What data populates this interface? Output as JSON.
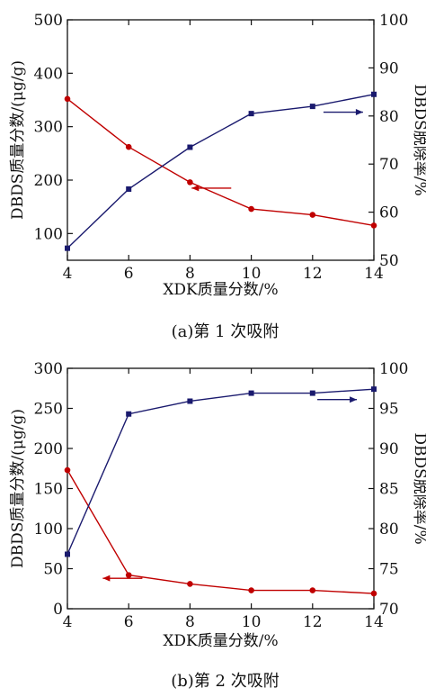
{
  "chart_data": [
    {
      "type": "line",
      "caption": "(a)第 1 次吸附",
      "xlabel": "XDK质量分数/%",
      "ylabel_left": "DBDS质量分数/(μg/g)",
      "ylabel_right": "DBDS脱除率/%",
      "x": [
        4,
        6,
        8,
        10,
        12,
        14
      ],
      "xlim": [
        4,
        14
      ],
      "ylim_left": [
        50,
        500
      ],
      "ylim_right": [
        50,
        100
      ],
      "xticks": [
        "4",
        "6",
        "8",
        "10",
        "12",
        "14"
      ],
      "yticks_left": [
        "100",
        "200",
        "300",
        "400",
        "500"
      ],
      "yticks_right": [
        "50",
        "60",
        "70",
        "80",
        "90",
        "100"
      ],
      "series": [
        {
          "axis": "left",
          "color": "#c00000",
          "marker": "circle",
          "values": [
            352,
            262,
            196,
            146,
            135,
            115
          ]
        },
        {
          "axis": "right",
          "color": "#1a1a6e",
          "marker": "square",
          "values": [
            52.5,
            64.8,
            73.5,
            80.5,
            82.0,
            84.5
          ]
        }
      ],
      "arrows": [
        {
          "series": 0,
          "direction": "left",
          "x": 8.7,
          "y_right": 65
        },
        {
          "series": 1,
          "direction": "right",
          "x": 13.0,
          "y_right": 80.8
        }
      ]
    },
    {
      "type": "line",
      "caption": "(b)第 2 次吸附",
      "xlabel": "XDK质量分数/%",
      "ylabel_left": "DBDS质量分数/(μg/g)",
      "ylabel_right": "DBDS脱除率/%",
      "x": [
        4,
        6,
        8,
        10,
        12,
        14
      ],
      "xlim": [
        4,
        14
      ],
      "ylim_left": [
        0,
        300
      ],
      "ylim_right": [
        70,
        100
      ],
      "xticks": [
        "4",
        "6",
        "8",
        "10",
        "12",
        "14"
      ],
      "yticks_left": [
        "0",
        "50",
        "100",
        "150",
        "200",
        "250",
        "300"
      ],
      "yticks_right": [
        "70",
        "75",
        "80",
        "85",
        "90",
        "95",
        "100"
      ],
      "series": [
        {
          "axis": "left",
          "color": "#c00000",
          "marker": "circle",
          "values": [
            173,
            42,
            31,
            23,
            23,
            19
          ]
        },
        {
          "axis": "right",
          "color": "#1a1a6e",
          "marker": "square",
          "values": [
            76.8,
            94.3,
            95.9,
            96.9,
            96.9,
            97.4
          ]
        }
      ],
      "arrows": [
        {
          "series": 0,
          "direction": "left",
          "x": 5.8,
          "y_right": 73.8
        },
        {
          "series": 1,
          "direction": "right",
          "x": 12.8,
          "y_right": 96.1
        }
      ]
    }
  ]
}
